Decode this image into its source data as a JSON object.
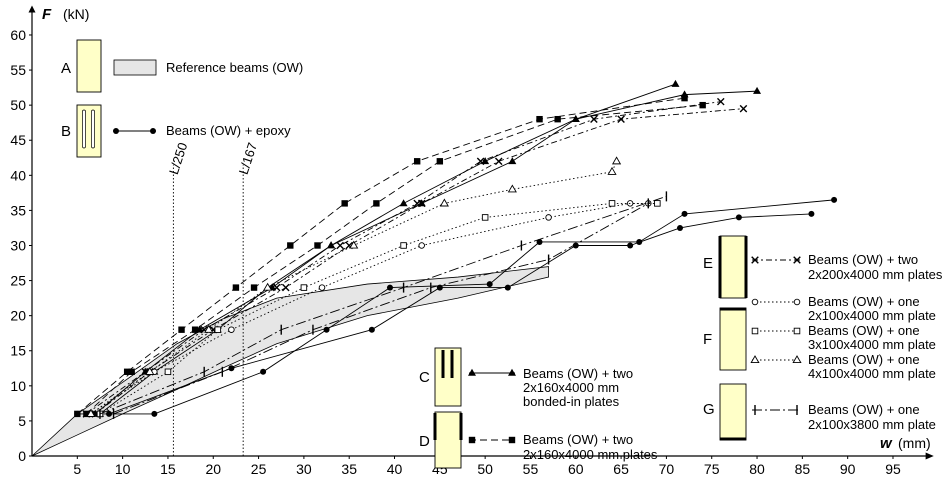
{
  "chart_data": {
    "type": "line",
    "x_axis": {
      "label_symbol": "w",
      "label_unit": "(mm)",
      "range": [
        0,
        95
      ],
      "ticks": [
        5,
        10,
        15,
        20,
        25,
        30,
        35,
        40,
        45,
        50,
        55,
        60,
        65,
        70,
        75,
        80,
        85,
        90,
        95
      ]
    },
    "y_axis": {
      "label_symbol": "F",
      "label_unit": "(kN)",
      "range": [
        0,
        60
      ],
      "ticks": [
        0,
        5,
        10,
        15,
        20,
        25,
        30,
        35,
        40,
        45,
        50,
        55,
        60
      ]
    },
    "grid": false,
    "reference_lines": [
      {
        "label": "L/250",
        "x": 15.6
      },
      {
        "label": "L/167",
        "x": 23.3
      }
    ],
    "reference_band": {
      "name": "Reference beams (OW)",
      "upper": [
        [
          0,
          0
        ],
        [
          5,
          6
        ],
        [
          10,
          10.5
        ],
        [
          16,
          16
        ],
        [
          21,
          19.5
        ],
        [
          27,
          22.5
        ],
        [
          37,
          24.5
        ],
        [
          47,
          25.5
        ],
        [
          57,
          27
        ]
      ],
      "lower": [
        [
          0,
          0
        ],
        [
          5,
          3
        ],
        [
          10,
          6
        ],
        [
          16,
          9.5
        ],
        [
          21,
          12.5
        ],
        [
          27,
          16
        ],
        [
          37,
          20
        ],
        [
          47,
          22.5
        ],
        [
          57,
          25.5
        ]
      ]
    },
    "series": [
      {
        "name": "Beams (OW) + epoxy",
        "marker": "circle-filled",
        "style": "solid",
        "points": [
          [
            5,
            6
          ],
          [
            13.5,
            6
          ],
          [
            25.5,
            12
          ],
          [
            32.5,
            18
          ],
          [
            39.5,
            24
          ],
          [
            50.5,
            24.5
          ],
          [
            56,
            30.5
          ],
          [
            67,
            30.5
          ],
          [
            72,
            34.5
          ],
          [
            88.5,
            36.5
          ]
        ]
      },
      {
        "name": "Beams (OW) + epoxy",
        "marker": "circle-filled",
        "style": "solid",
        "points": [
          [
            8.5,
            6
          ],
          [
            22,
            12.5
          ],
          [
            37.5,
            18
          ],
          [
            45,
            24
          ],
          [
            52.5,
            24
          ],
          [
            60,
            30
          ],
          [
            66,
            30
          ],
          [
            71.5,
            32.5
          ],
          [
            78,
            34
          ],
          [
            86,
            34.5
          ]
        ]
      },
      {
        "name": "Beams (OW) + two 2x160x4000 mm bonded-in plates",
        "marker": "triangle-filled",
        "style": "solid",
        "points": [
          [
            7,
            6
          ],
          [
            12.5,
            12
          ],
          [
            18.5,
            18
          ],
          [
            26.5,
            24
          ],
          [
            33,
            30
          ],
          [
            41,
            36
          ],
          [
            50,
            42
          ],
          [
            60,
            48
          ],
          [
            71,
            53
          ]
        ]
      },
      {
        "name": "Beams (OW) + two 2x160x4000 mm bonded-in plates",
        "marker": "triangle-filled",
        "style": "solid",
        "points": [
          [
            7.5,
            6
          ],
          [
            13.5,
            12
          ],
          [
            20.5,
            18
          ],
          [
            26,
            24
          ],
          [
            33,
            30
          ],
          [
            43,
            36
          ],
          [
            53,
            42
          ],
          [
            60,
            48
          ],
          [
            72,
            51.5
          ],
          [
            80,
            52
          ]
        ]
      },
      {
        "name": "Beams (OW) + two 2x160x4000 mm plates",
        "marker": "square-filled",
        "style": "dashed",
        "points": [
          [
            5,
            6
          ],
          [
            10.5,
            12
          ],
          [
            16.5,
            18
          ],
          [
            22.5,
            24
          ],
          [
            28.5,
            30
          ],
          [
            34.5,
            36
          ],
          [
            42.5,
            42
          ],
          [
            56,
            48
          ],
          [
            72,
            51
          ]
        ]
      },
      {
        "name": "Beams (OW) + two 2x160x4000 mm plates",
        "marker": "square-filled",
        "style": "dashed",
        "points": [
          [
            6,
            6
          ],
          [
            11,
            12
          ],
          [
            18,
            18
          ],
          [
            24.5,
            24
          ],
          [
            31.5,
            30
          ],
          [
            38,
            36
          ],
          [
            45,
            42
          ],
          [
            58,
            48
          ],
          [
            74,
            50
          ]
        ]
      },
      {
        "name": "Beams (OW) + two 2x200x4000 mm plates",
        "marker": "x",
        "style": "dashed-dot",
        "points": [
          [
            6,
            6
          ],
          [
            12.5,
            12
          ],
          [
            19,
            18
          ],
          [
            27,
            24
          ],
          [
            34,
            30
          ],
          [
            42.5,
            36
          ],
          [
            49.5,
            42
          ],
          [
            62,
            48
          ],
          [
            76,
            50.5
          ]
        ]
      },
      {
        "name": "Beams (OW) + two 2x200x4000 mm plates",
        "marker": "x",
        "style": "dashed-dot",
        "points": [
          [
            7,
            6
          ],
          [
            13,
            12
          ],
          [
            20,
            18
          ],
          [
            28,
            24
          ],
          [
            35,
            30
          ],
          [
            43,
            36
          ],
          [
            51.5,
            42
          ],
          [
            65,
            48
          ],
          [
            78.5,
            49.5
          ]
        ]
      },
      {
        "name": "Beams (OW) + one 2x100x4000 mm plate",
        "marker": "circle-open",
        "style": "dotted",
        "points": [
          [
            6.5,
            6
          ],
          [
            13.5,
            12
          ],
          [
            22,
            18
          ],
          [
            32,
            24
          ],
          [
            43,
            30
          ],
          [
            57,
            34
          ],
          [
            66,
            36
          ],
          [
            68,
            36
          ]
        ]
      },
      {
        "name": "Beams (OW) + one 3x100x4000 mm plate",
        "marker": "square-open",
        "style": "dotted",
        "points": [
          [
            7.5,
            6
          ],
          [
            15,
            12
          ],
          [
            20.5,
            18
          ],
          [
            30,
            24
          ],
          [
            41,
            30
          ],
          [
            50,
            34
          ],
          [
            64,
            36
          ],
          [
            69,
            36
          ]
        ]
      },
      {
        "name": "Beams (OW) + one 4x100x4000 mm plate",
        "marker": "triangle-open",
        "style": "dotted",
        "points": [
          [
            6.5,
            6
          ],
          [
            13,
            12
          ],
          [
            19.5,
            18
          ],
          [
            26,
            24
          ],
          [
            35.5,
            30
          ],
          [
            45.5,
            36
          ],
          [
            53,
            38
          ],
          [
            64,
            40.5
          ],
          [
            64.5,
            42
          ]
        ]
      },
      {
        "name": "Beams (OW) + one 2x100x3800 mm plate",
        "marker": "vbar",
        "style": "dash-dot",
        "points": [
          [
            7.5,
            6
          ],
          [
            19,
            12
          ],
          [
            27.5,
            18
          ],
          [
            41,
            24
          ],
          [
            54,
            30
          ],
          [
            70,
            37
          ]
        ]
      },
      {
        "name": "Beams (OW) + one 2x100x3800 mm plate",
        "marker": "vbar",
        "style": "dash-dot",
        "points": [
          [
            9,
            6
          ],
          [
            21,
            12
          ],
          [
            31,
            18
          ],
          [
            44,
            24
          ],
          [
            57,
            28
          ],
          [
            68,
            36
          ]
        ]
      }
    ]
  },
  "legend": {
    "A": {
      "letter": "A",
      "text": "Reference beams (OW)"
    },
    "B": {
      "letter": "B",
      "text": "Beams (OW) + epoxy"
    },
    "C": {
      "letter": "C",
      "lines": [
        "Beams (OW) + two",
        "2x160x4000 mm",
        "bonded-in plates"
      ]
    },
    "D": {
      "letter": "D",
      "lines": [
        "Beams (OW) + two",
        "2x160x4000 mm plates"
      ]
    },
    "E": {
      "letter": "E",
      "lines": [
        "Beams (OW) + two",
        "2x200x4000 mm plates"
      ]
    },
    "F": {
      "letter": "F",
      "entries": [
        [
          "Beams (OW) + one",
          "2x100x4000 mm plate"
        ],
        [
          "Beams (OW) + one",
          "3x100x4000 mm plate"
        ],
        [
          "Beams (OW) + one",
          "4x100x4000 mm plate"
        ]
      ]
    },
    "G": {
      "letter": "G",
      "lines": [
        "Beams (OW) + one",
        "2x100x3800 mm plate"
      ]
    }
  },
  "colors": {
    "ink": "#000000",
    "band_fill": "#e6e6e6",
    "beam_fill": "#ffffc8"
  }
}
